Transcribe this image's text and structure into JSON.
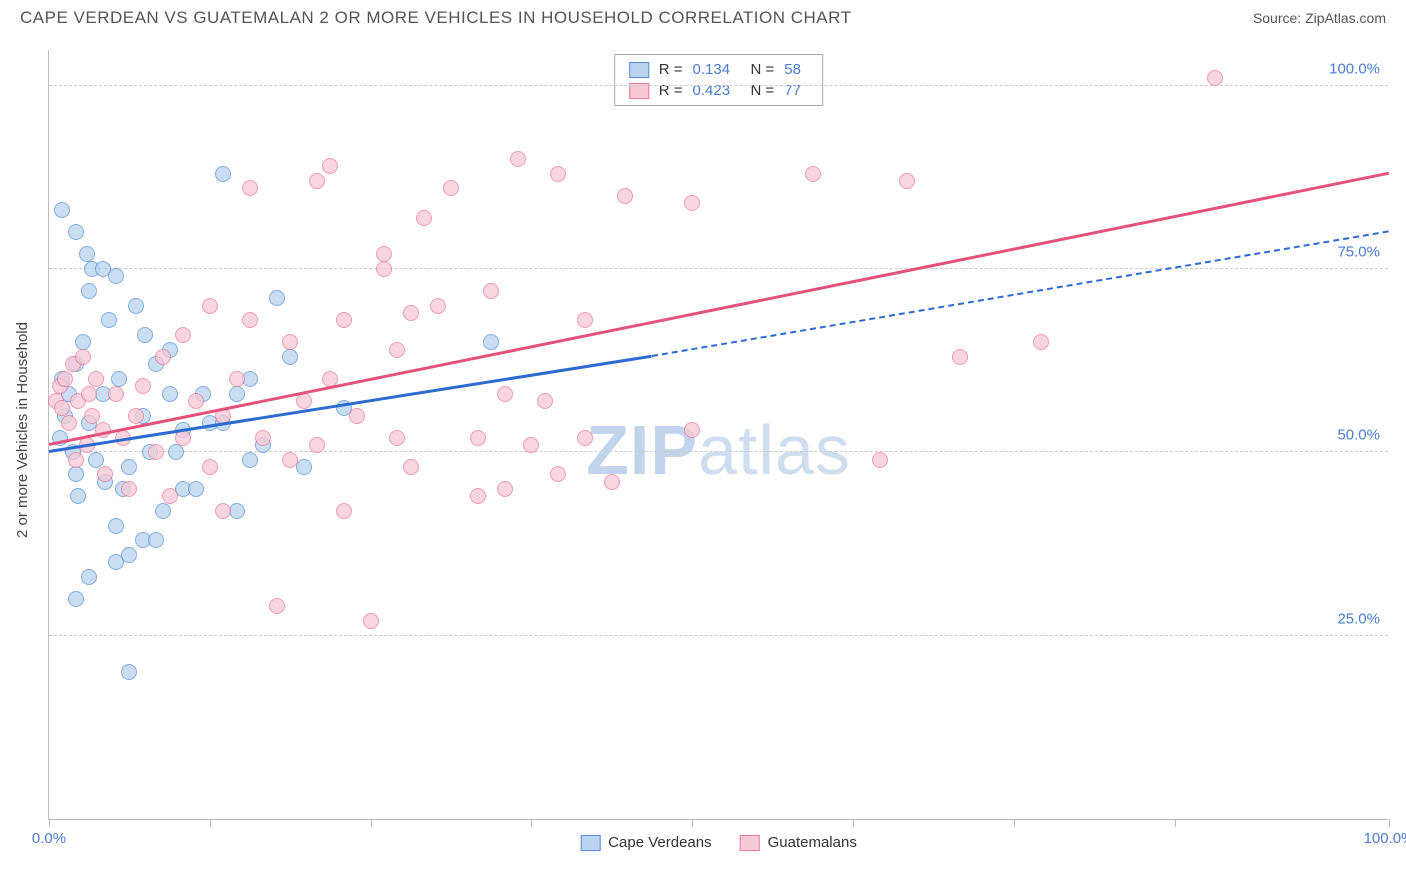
{
  "header": {
    "title": "CAPE VERDEAN VS GUATEMALAN 2 OR MORE VEHICLES IN HOUSEHOLD CORRELATION CHART",
    "source": "Source: ZipAtlas.com"
  },
  "chart": {
    "type": "scatter",
    "ylabel": "2 or more Vehicles in Household",
    "watermark_a": "ZIP",
    "watermark_b": "atlas",
    "xlim": [
      0,
      100
    ],
    "ylim": [
      0,
      105
    ],
    "ytick_labels": [
      "25.0%",
      "50.0%",
      "75.0%",
      "100.0%"
    ],
    "ytick_vals": [
      25,
      50,
      75,
      100
    ],
    "xtick_vals": [
      0,
      12,
      24,
      36,
      48,
      60,
      72,
      84,
      100
    ],
    "xtick_labels_visible": {
      "0": "0.0%",
      "100": "100.0%"
    },
    "colors": {
      "series1_fill": "#b9d3f0",
      "series1_border": "#5a8fd6",
      "series2_fill": "#f7c9d5",
      "series2_border": "#e87b9a",
      "grid": "#cccccc",
      "axis": "#bbbbbb",
      "label": "#4a7bd0",
      "regress1": "#2e6bd0",
      "regress2": "#e2527a"
    },
    "series": [
      {
        "name": "Cape Verdeans",
        "r": "0.134",
        "n": "58",
        "regression": {
          "x1": 0,
          "y1": 50,
          "x2": 45,
          "y2": 63,
          "extend_x": 100,
          "extend_y": 80
        },
        "points": [
          [
            0.8,
            52
          ],
          [
            1,
            60
          ],
          [
            1.2,
            55
          ],
          [
            1.5,
            58
          ],
          [
            1.8,
            50
          ],
          [
            2,
            47
          ],
          [
            2,
            62
          ],
          [
            2.2,
            44
          ],
          [
            2.5,
            65
          ],
          [
            3,
            72
          ],
          [
            3,
            54
          ],
          [
            3.2,
            75
          ],
          [
            3.5,
            49
          ],
          [
            4,
            58
          ],
          [
            4,
            75
          ],
          [
            4.5,
            68
          ],
          [
            5,
            40
          ],
          [
            5,
            35
          ],
          [
            5.2,
            60
          ],
          [
            5.5,
            45
          ],
          [
            6,
            48
          ],
          [
            6,
            36
          ],
          [
            6.5,
            70
          ],
          [
            7,
            55
          ],
          [
            7,
            38
          ],
          [
            7.5,
            50
          ],
          [
            8,
            62
          ],
          [
            8,
            38
          ],
          [
            8.5,
            42
          ],
          [
            9,
            58
          ],
          [
            9,
            64
          ],
          [
            9.5,
            50
          ],
          [
            10,
            45
          ],
          [
            10,
            53
          ],
          [
            11,
            45
          ],
          [
            11.5,
            58
          ],
          [
            12,
            54
          ],
          [
            13,
            54
          ],
          [
            13,
            88
          ],
          [
            14,
            58
          ],
          [
            14,
            42
          ],
          [
            15,
            49
          ],
          [
            15,
            60
          ],
          [
            16,
            51
          ],
          [
            17,
            71
          ],
          [
            18,
            63
          ],
          [
            19,
            48
          ],
          [
            22,
            56
          ],
          [
            2,
            30
          ],
          [
            3,
            33
          ],
          [
            6,
            20
          ],
          [
            1,
            83
          ],
          [
            2,
            80
          ],
          [
            2.8,
            77
          ],
          [
            5,
            74
          ],
          [
            4.2,
            46
          ],
          [
            7.2,
            66
          ],
          [
            33,
            65
          ]
        ]
      },
      {
        "name": "Guatemalans",
        "r": "0.423",
        "n": "77",
        "regression": {
          "x1": 0,
          "y1": 51,
          "x2": 100,
          "y2": 88
        },
        "points": [
          [
            0.5,
            57
          ],
          [
            0.8,
            59
          ],
          [
            1,
            56
          ],
          [
            1.2,
            60
          ],
          [
            1.5,
            54
          ],
          [
            1.8,
            62
          ],
          [
            2,
            49
          ],
          [
            2.2,
            57
          ],
          [
            2.5,
            63
          ],
          [
            2.8,
            51
          ],
          [
            3,
            58
          ],
          [
            3.2,
            55
          ],
          [
            3.5,
            60
          ],
          [
            4,
            53
          ],
          [
            4.2,
            47
          ],
          [
            5,
            58
          ],
          [
            5.5,
            52
          ],
          [
            6,
            45
          ],
          [
            6.5,
            55
          ],
          [
            7,
            59
          ],
          [
            8,
            50
          ],
          [
            8.5,
            63
          ],
          [
            9,
            44
          ],
          [
            10,
            52
          ],
          [
            10,
            66
          ],
          [
            11,
            57
          ],
          [
            12,
            48
          ],
          [
            12,
            70
          ],
          [
            13,
            55
          ],
          [
            14,
            60
          ],
          [
            15,
            68
          ],
          [
            15,
            86
          ],
          [
            16,
            52
          ],
          [
            17,
            29
          ],
          [
            18,
            65
          ],
          [
            18,
            49
          ],
          [
            19,
            57
          ],
          [
            20,
            51
          ],
          [
            20,
            87
          ],
          [
            21,
            60
          ],
          [
            21,
            89
          ],
          [
            22,
            42
          ],
          [
            22,
            68
          ],
          [
            23,
            55
          ],
          [
            24,
            27
          ],
          [
            25,
            75
          ],
          [
            25,
            77
          ],
          [
            26,
            64
          ],
          [
            26,
            52
          ],
          [
            27,
            48
          ],
          [
            28,
            82
          ],
          [
            29,
            70
          ],
          [
            30,
            86
          ],
          [
            32,
            44
          ],
          [
            32,
            52
          ],
          [
            33,
            72
          ],
          [
            34,
            45
          ],
          [
            34,
            58
          ],
          [
            35,
            90
          ],
          [
            36,
            51
          ],
          [
            37,
            57
          ],
          [
            38,
            47
          ],
          [
            38,
            88
          ],
          [
            40,
            52
          ],
          [
            40,
            68
          ],
          [
            42,
            46
          ],
          [
            43,
            85
          ],
          [
            48,
            53
          ],
          [
            48,
            84
          ],
          [
            57,
            88
          ],
          [
            62,
            49
          ],
          [
            68,
            63
          ],
          [
            64,
            87
          ],
          [
            74,
            65
          ],
          [
            87,
            101
          ],
          [
            27,
            69
          ],
          [
            13,
            42
          ]
        ]
      }
    ]
  },
  "legend": {
    "s1": "Cape Verdeans",
    "s2": "Guatemalans",
    "r_label": "R  =",
    "n_label": "N  ="
  }
}
